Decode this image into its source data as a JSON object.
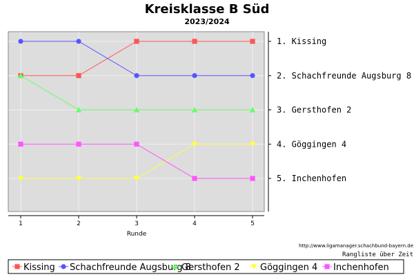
{
  "chart_data": {
    "type": "line",
    "title": "Kreisklasse B Süd",
    "subtitle": "2023/2024",
    "xlabel": "Runde",
    "x": [
      1,
      2,
      3,
      4,
      5
    ],
    "xlim": [
      0.8,
      5.2
    ],
    "ylim": [
      0.5,
      5.95
    ],
    "y_inverted": true,
    "grid": true,
    "ranking_labels": [
      "1. Kissing",
      "2. Schachfreunde Augsburg 8",
      "3. Gersthofen 2",
      "4. Göggingen 4",
      "5. Inchenhofen"
    ],
    "series": [
      {
        "name": "Kissing",
        "color": "#ff5555",
        "marker": "square",
        "values": [
          2,
          2,
          1,
          1,
          1
        ]
      },
      {
        "name": "Schachfreunde Augsburg 8",
        "color": "#5555ff",
        "marker": "circle",
        "values": [
          1,
          1,
          2,
          2,
          2
        ]
      },
      {
        "name": "Gersthofen 2",
        "color": "#66ff66",
        "marker": "triangle",
        "values": [
          2,
          3,
          3,
          3,
          3
        ]
      },
      {
        "name": "Göggingen 4",
        "color": "#ffff44",
        "marker": "triangle-down",
        "values": [
          5,
          5,
          5,
          4,
          4
        ]
      },
      {
        "name": "Inchenhofen",
        "color": "#ff55ff",
        "marker": "square",
        "values": [
          4,
          4,
          4,
          5,
          5
        ]
      }
    ],
    "legend_position": "bottom",
    "footer_url": "http://www.ligamanager.schachbund-bayern.de",
    "footer_caption": "Rangliste über Zeit"
  }
}
